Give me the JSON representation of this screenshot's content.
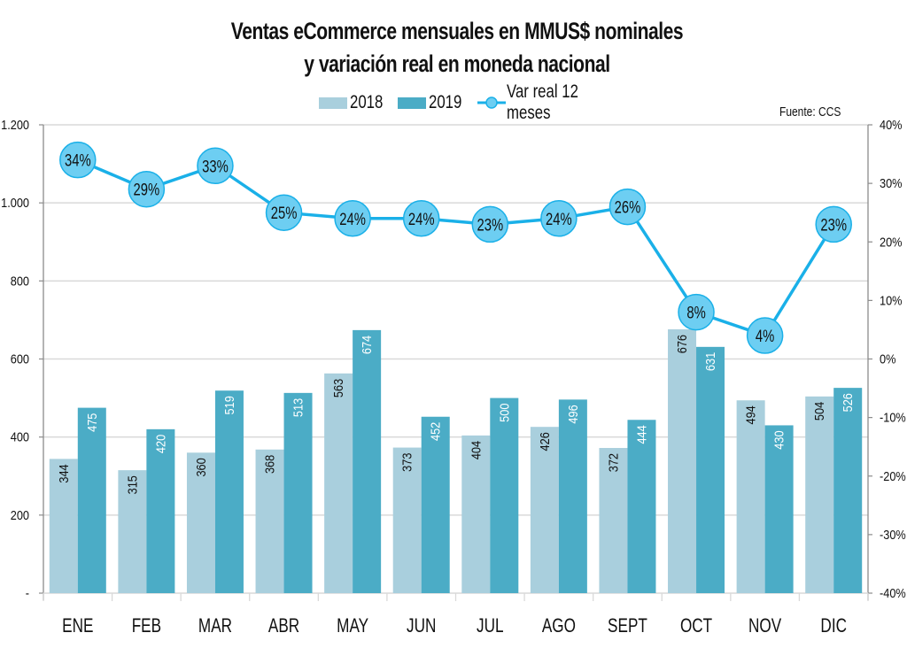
{
  "chart_data": {
    "type": "bar",
    "title": "Ventas eCommerce mensuales en MMUS$ nominales",
    "subtitle": "y variación real en moneda nacional",
    "source": "Fuente: CCS",
    "categories": [
      "ENE",
      "FEB",
      "MAR",
      "ABR",
      "MAY",
      "JUN",
      "JUL",
      "AGO",
      "SEPT",
      "OCT",
      "NOV",
      "DIC"
    ],
    "series": [
      {
        "name": "2018",
        "type": "bar",
        "axis": "left",
        "color": "#a9cfdd",
        "values": [
          344,
          315,
          360,
          368,
          563,
          373,
          404,
          426,
          372,
          676,
          494,
          504
        ]
      },
      {
        "name": "2019",
        "type": "bar",
        "axis": "left",
        "color": "#4bacc6",
        "values": [
          475,
          420,
          519,
          513,
          674,
          452,
          500,
          496,
          444,
          631,
          430,
          526
        ]
      },
      {
        "name": "Var real 12 meses",
        "type": "line",
        "axis": "right",
        "color": "#1ab0e8",
        "marker_fill": "#6dcef2",
        "values": [
          34,
          29,
          33,
          25,
          24,
          24,
          23,
          24,
          26,
          8,
          4,
          23
        ],
        "labels": [
          "34%",
          "29%",
          "33%",
          "25%",
          "24%",
          "24%",
          "23%",
          "24%",
          "26%",
          "8%",
          "4%",
          "23%"
        ]
      }
    ],
    "legend": {
      "position": "top",
      "entries": [
        "2018",
        "2019",
        "Var real 12 meses"
      ]
    },
    "y_left": {
      "ylim": [
        0,
        1200
      ],
      "ticks": [
        0,
        200,
        400,
        600,
        800,
        1000,
        1200
      ],
      "tick_labels": [
        "-",
        "200",
        "400",
        "600",
        "800",
        "1.000",
        "1.200"
      ]
    },
    "y_right": {
      "ylim": [
        -40,
        40
      ],
      "ticks": [
        -40,
        -30,
        -20,
        -10,
        0,
        10,
        20,
        30,
        40
      ],
      "tick_labels": [
        "-40%",
        "-30%",
        "-20%",
        "-10%",
        "0%",
        "10%",
        "20%",
        "30%",
        "40%"
      ]
    },
    "grid": true,
    "xlabel": "",
    "ylabel": ""
  }
}
